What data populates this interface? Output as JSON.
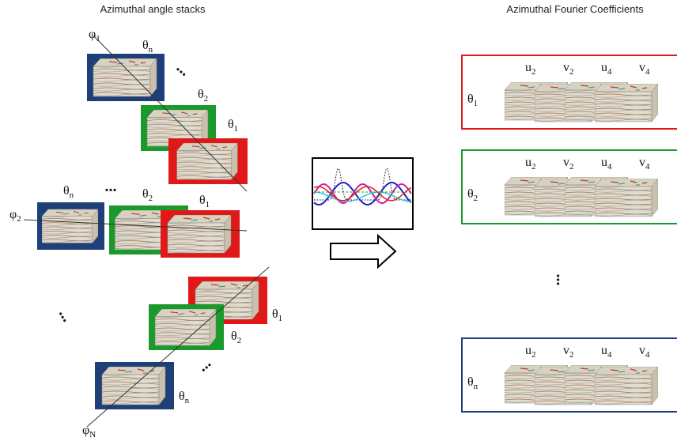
{
  "left_panel": {
    "title": "Azimuthal angle stacks",
    "labels": [
      {
        "base": "φ",
        "sub": "1"
      },
      {
        "base": "θ",
        "sub": "n"
      },
      "...",
      {
        "base": "θ",
        "sub": "2"
      },
      {
        "base": "θ",
        "sub": "1"
      },
      {
        "base": "θ",
        "sub": "n"
      },
      "...",
      {
        "base": "θ",
        "sub": "2"
      },
      {
        "base": "θ",
        "sub": "1"
      },
      {
        "base": "φ",
        "sub": "2"
      },
      "...",
      {
        "base": "θ",
        "sub": "1"
      },
      {
        "base": "θ",
        "sub": "2"
      },
      "...",
      {
        "base": "θ",
        "sub": "n"
      },
      {
        "base": "φ",
        "sub": "N"
      }
    ]
  },
  "right_panel": {
    "title": "Azimuthal Fourier Coefficients",
    "rows": [
      {
        "label": {
          "base": "θ",
          "sub": "1"
        },
        "coefficients": [
          {
            "base": "u",
            "sub": "2"
          },
          {
            "base": "v",
            "sub": "2"
          },
          {
            "base": "u",
            "sub": "4"
          },
          {
            "base": "v",
            "sub": "4"
          }
        ]
      },
      {
        "label": {
          "base": "θ",
          "sub": "2"
        },
        "coefficients": [
          {
            "base": "u",
            "sub": "2"
          },
          {
            "base": "v",
            "sub": "2"
          },
          {
            "base": "u",
            "sub": "4"
          },
          {
            "base": "v",
            "sub": "4"
          }
        ]
      },
      {
        "label": {
          "base": "θ",
          "sub": "n"
        },
        "coefficients": [
          {
            "base": "u",
            "sub": "2"
          },
          {
            "base": "v",
            "sub": "2"
          },
          {
            "base": "u",
            "sub": "4"
          },
          {
            "base": "v",
            "sub": "4"
          }
        ]
      }
    ],
    "ellipsis": "..."
  }
}
